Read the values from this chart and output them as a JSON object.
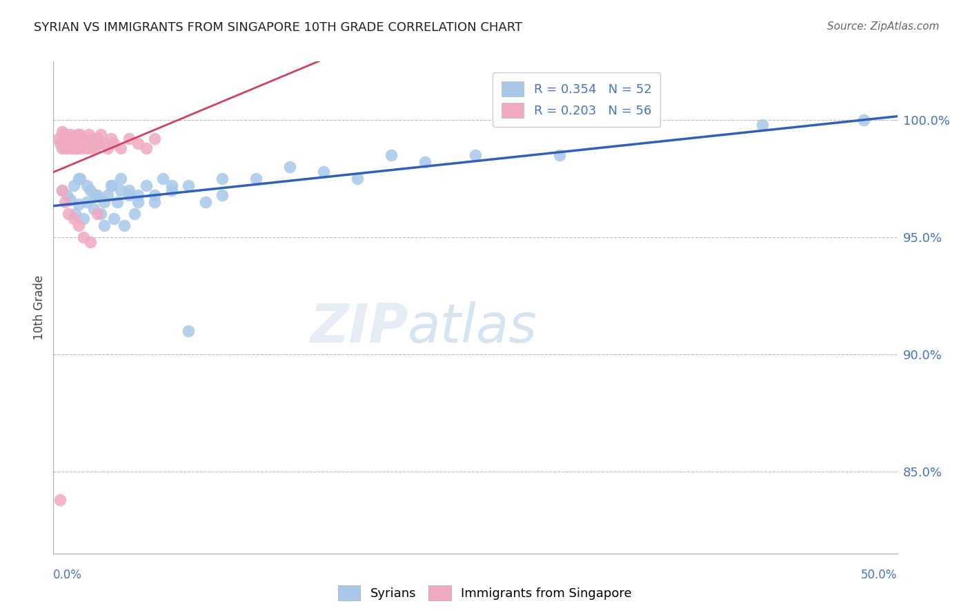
{
  "title": "SYRIAN VS IMMIGRANTS FROM SINGAPORE 10TH GRADE CORRELATION CHART",
  "source": "Source: ZipAtlas.com",
  "ylabel": "10th Grade",
  "ytick_values": [
    0.85,
    0.9,
    0.95,
    1.0
  ],
  "ytick_labels": [
    "85.0%",
    "90.0%",
    "95.0%",
    "100.0%"
  ],
  "xlim": [
    0.0,
    0.5
  ],
  "ylim": [
    0.815,
    1.025
  ],
  "legend_label1": "R = 0.354   N = 52",
  "legend_label2": "R = 0.203   N = 56",
  "series1_color": "#a8c8ea",
  "series2_color": "#f0aac0",
  "trendline1_color": "#3060b8",
  "trendline2_color": "#d04060",
  "syrians_x": [
    0.005,
    0.008,
    0.01,
    0.012,
    0.013,
    0.015,
    0.016,
    0.018,
    0.02,
    0.022,
    0.024,
    0.026,
    0.028,
    0.03,
    0.032,
    0.034,
    0.036,
    0.038,
    0.04,
    0.042,
    0.045,
    0.048,
    0.05,
    0.055,
    0.06,
    0.065,
    0.07,
    0.08,
    0.09,
    0.1,
    0.015,
    0.02,
    0.025,
    0.03,
    0.035,
    0.04,
    0.045,
    0.05,
    0.06,
    0.07,
    0.08,
    0.1,
    0.12,
    0.14,
    0.16,
    0.18,
    0.2,
    0.22,
    0.25,
    0.3,
    0.42,
    0.48
  ],
  "syrians_y": [
    0.97,
    0.968,
    0.966,
    0.972,
    0.96,
    0.964,
    0.975,
    0.958,
    0.965,
    0.97,
    0.962,
    0.968,
    0.96,
    0.955,
    0.968,
    0.972,
    0.958,
    0.965,
    0.97,
    0.955,
    0.968,
    0.96,
    0.965,
    0.972,
    0.968,
    0.975,
    0.97,
    0.972,
    0.965,
    0.968,
    0.975,
    0.972,
    0.968,
    0.965,
    0.972,
    0.975,
    0.97,
    0.968,
    0.965,
    0.972,
    0.91,
    0.975,
    0.975,
    0.98,
    0.978,
    0.975,
    0.985,
    0.982,
    0.985,
    0.985,
    0.998,
    1.0
  ],
  "singapore_x": [
    0.003,
    0.004,
    0.005,
    0.005,
    0.006,
    0.006,
    0.007,
    0.007,
    0.008,
    0.008,
    0.009,
    0.009,
    0.01,
    0.01,
    0.011,
    0.011,
    0.012,
    0.012,
    0.013,
    0.013,
    0.014,
    0.014,
    0.015,
    0.015,
    0.016,
    0.016,
    0.017,
    0.018,
    0.019,
    0.02,
    0.021,
    0.022,
    0.023,
    0.024,
    0.025,
    0.026,
    0.027,
    0.028,
    0.03,
    0.032,
    0.034,
    0.036,
    0.04,
    0.045,
    0.05,
    0.055,
    0.06,
    0.005,
    0.007,
    0.009,
    0.012,
    0.015,
    0.018,
    0.022,
    0.026,
    0.004
  ],
  "singapore_y": [
    0.992,
    0.99,
    0.988,
    0.995,
    0.99,
    0.994,
    0.988,
    0.992,
    0.99,
    0.994,
    0.988,
    0.992,
    0.99,
    0.994,
    0.988,
    0.992,
    0.99,
    0.988,
    0.992,
    0.99,
    0.994,
    0.988,
    0.992,
    0.99,
    0.988,
    0.994,
    0.99,
    0.992,
    0.988,
    0.99,
    0.994,
    0.988,
    0.992,
    0.99,
    0.988,
    0.992,
    0.99,
    0.994,
    0.99,
    0.988,
    0.992,
    0.99,
    0.988,
    0.992,
    0.99,
    0.988,
    0.992,
    0.97,
    0.965,
    0.96,
    0.958,
    0.955,
    0.95,
    0.948,
    0.96,
    0.838
  ]
}
